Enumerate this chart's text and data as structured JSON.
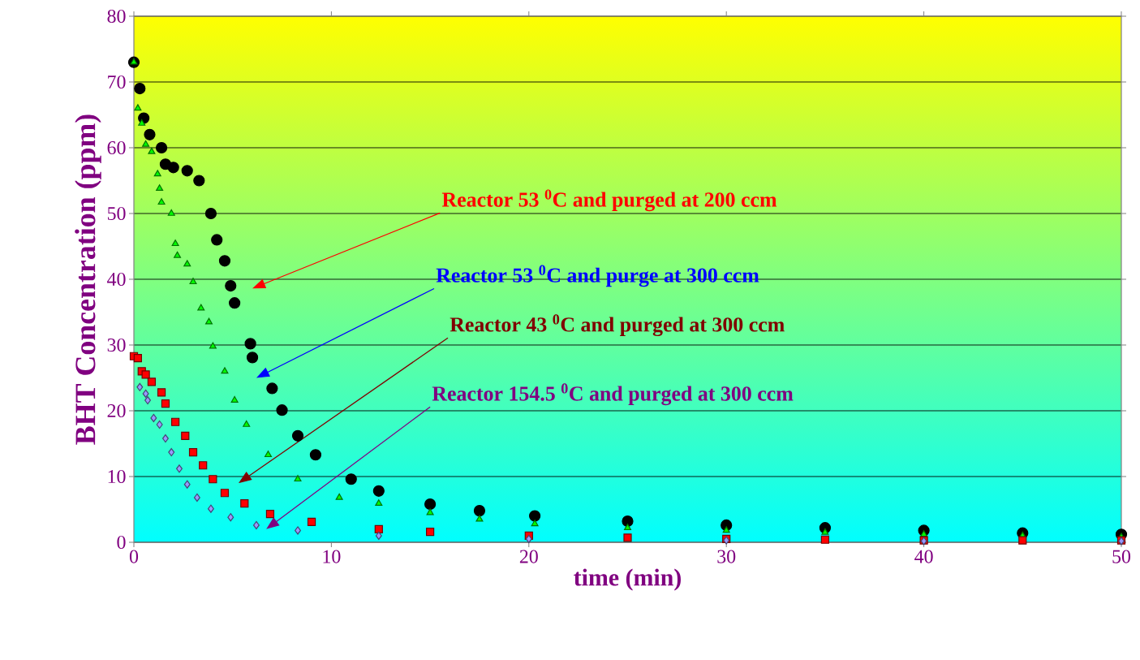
{
  "chart_data": {
    "type": "scatter",
    "xlabel": "time (min)",
    "ylabel": "BHT Concentration (ppm)",
    "xlim": [
      0,
      50
    ],
    "ylim": [
      0,
      80
    ],
    "xticks": [
      0,
      10,
      20,
      30,
      40,
      50
    ],
    "yticks": [
      0,
      10,
      20,
      30,
      40,
      50,
      60,
      70,
      80
    ],
    "grid": "y",
    "series": [
      {
        "color": "#000000",
        "marker": "circle",
        "x": [
          0,
          0.3,
          0.5,
          0.8,
          1.4,
          1.6,
          2,
          2.7,
          3.3,
          3.9,
          4.2,
          4.6,
          4.9,
          5.1,
          5.9,
          6.0,
          7,
          7.5,
          8.3,
          9.2,
          11,
          12.4,
          15,
          17.5,
          20.3,
          25,
          30,
          35,
          40,
          45,
          50
        ],
        "values": [
          73,
          69,
          64.5,
          62,
          60,
          57.5,
          57,
          56.5,
          55,
          50,
          46,
          42.8,
          39,
          36.4,
          30.2,
          28.1,
          23.4,
          20.1,
          16.2,
          13.3,
          9.6,
          7.8,
          5.8,
          4.8,
          4,
          3.2,
          2.6,
          2.2,
          1.8,
          1.4,
          1.2
        ]
      },
      {
        "color": "#00ff00",
        "marker": "triangle",
        "x": [
          0,
          0.2,
          0.4,
          0.6,
          0.9,
          1.2,
          1.3,
          1.4,
          1.9,
          2.1,
          2.2,
          2.7,
          3,
          3.4,
          3.8,
          4,
          4.6,
          5.1,
          5.7,
          6.8,
          8.3,
          10.4,
          12.4,
          15,
          17.5,
          20.3,
          25,
          30,
          35,
          40,
          45,
          50
        ],
        "values": [
          73,
          66,
          63.7,
          60.5,
          59.4,
          56,
          53.8,
          51.7,
          50,
          45.4,
          43.6,
          42.3,
          39.6,
          35.6,
          33.5,
          29.8,
          26,
          21.6,
          17.9,
          13.3,
          9.6,
          6.8,
          5.9,
          4.5,
          3.5,
          2.8,
          2.2,
          1.8,
          1.5,
          1.2,
          1,
          0.8
        ]
      },
      {
        "color": "#ff0000",
        "marker": "square",
        "x": [
          0,
          0.2,
          0.4,
          0.6,
          0.9,
          1.4,
          1.6,
          2.1,
          2.6,
          3,
          3.5,
          4,
          4.6,
          5.6,
          6.9,
          9,
          12.4,
          15,
          20,
          25,
          30,
          35,
          40,
          45,
          50
        ],
        "values": [
          28.3,
          28,
          26,
          25.5,
          24.4,
          22.8,
          21.1,
          18.3,
          16.2,
          13.7,
          11.7,
          9.6,
          7.5,
          5.9,
          4.3,
          3.1,
          2,
          1.6,
          1,
          0.7,
          0.5,
          0.4,
          0.3,
          0.3,
          0.3
        ]
      },
      {
        "color": "#9999ff",
        "marker": "diamond",
        "x": [
          0.3,
          0.6,
          0.7,
          1.0,
          1.3,
          1.6,
          1.9,
          2.3,
          2.7,
          3.2,
          3.9,
          4.9,
          6.2,
          8.3,
          12.4,
          20,
          30,
          40,
          50
        ],
        "values": [
          23.6,
          22.6,
          21.6,
          18.9,
          17.9,
          15.8,
          13.7,
          11.2,
          8.8,
          6.8,
          5.1,
          3.8,
          2.6,
          1.8,
          1,
          0.5,
          0.3,
          0.2,
          0.2
        ]
      }
    ],
    "annotations": [
      "Reactor 53 $^{0}$C and purged at 200 ccm",
      "Reactor 53 $^{0}$C and purge at 300 ccm",
      "Reactor 43 $^{0}$C and purged at 300 ccm",
      "Reactor 154.5 $^{0}$C and purged at 300 ccm"
    ]
  }
}
